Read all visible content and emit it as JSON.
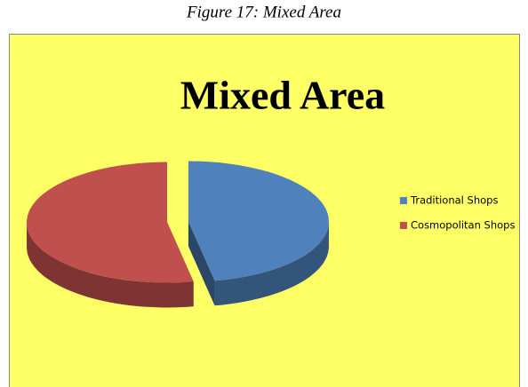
{
  "caption": "Figure 17: Mixed Area",
  "chart_data": {
    "type": "pie",
    "title": "Mixed Area",
    "categories": [
      "Traditional Shops",
      "Cosmopolitan Shops"
    ],
    "values": [
      47,
      53
    ],
    "colors": [
      "#4f81bd",
      "#c0504d"
    ],
    "legend": "right"
  }
}
